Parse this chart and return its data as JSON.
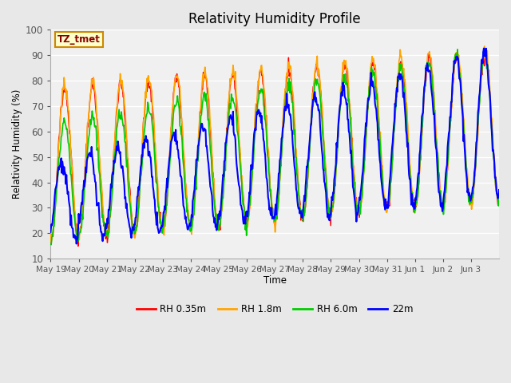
{
  "title": "Relativity Humidity Profile",
  "xlabel": "Time",
  "ylabel": "Relativity Humidity (%)",
  "ylim": [
    10,
    100
  ],
  "annotation": "TZ_tmet",
  "legend_labels": [
    "RH 0.35m",
    "RH 1.8m",
    "RH 6.0m",
    "22m"
  ],
  "colors": {
    "RH 0.35m": "#ff0000",
    "RH 1.8m": "#ffa500",
    "RH 6.0m": "#00cc00",
    "22m": "#0000ff"
  },
  "x_tick_labels": [
    "May 19",
    "May 20",
    "May 21",
    "May 22",
    "May 23",
    "May 24",
    "May 25",
    "May 26",
    "May 27",
    "May 28",
    "May 29",
    "May 30",
    "May 31",
    "Jun 1",
    "Jun 2",
    "Jun 3"
  ],
  "background_color": "#e8e8e8",
  "plot_bg_color": "#f0f0f0",
  "grid_color": "#ffffff",
  "figsize": [
    6.4,
    4.8
  ],
  "dpi": 100
}
